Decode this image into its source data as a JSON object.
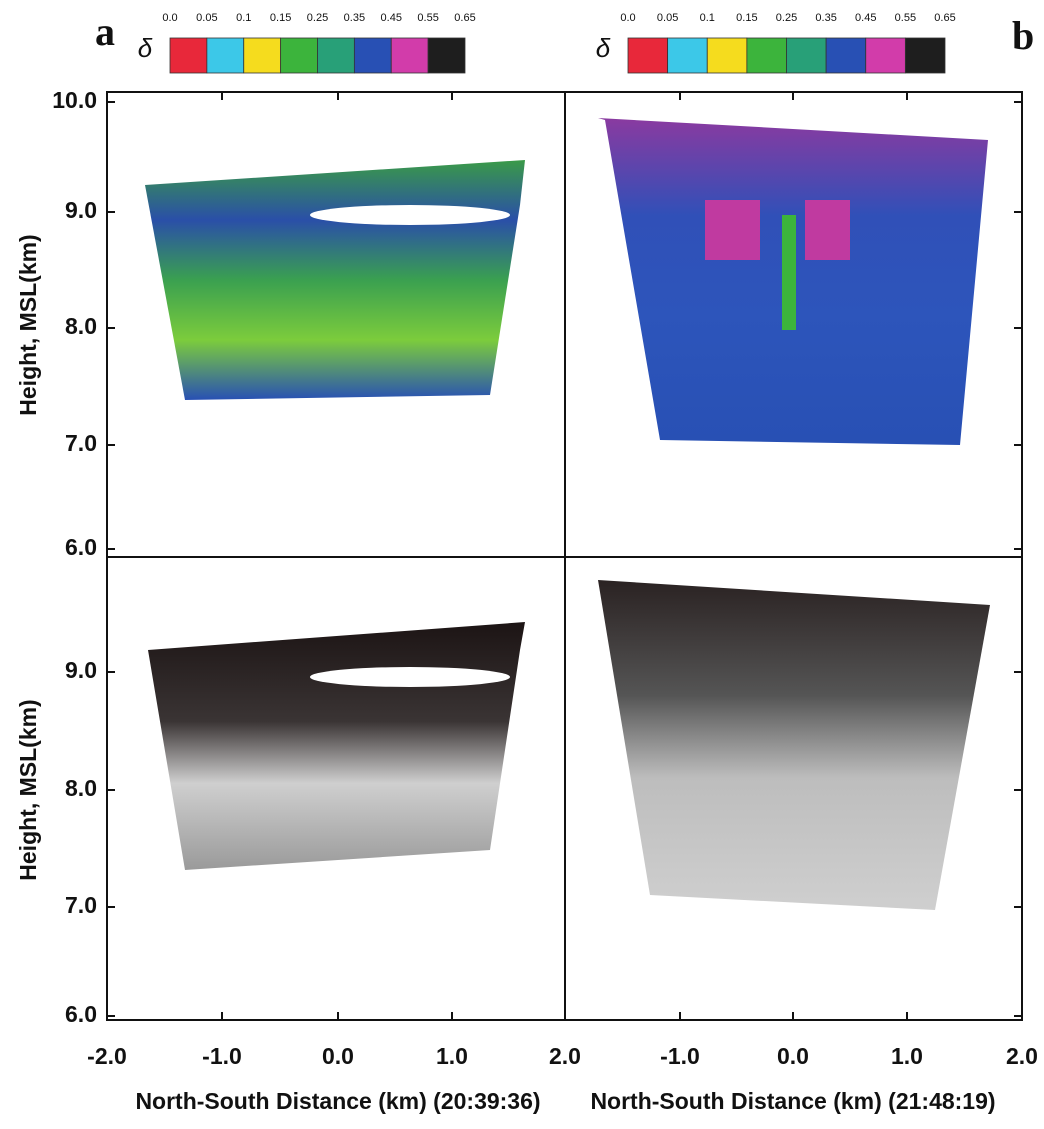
{
  "panel_labels": [
    "a",
    "b"
  ],
  "colorbar": {
    "symbol": "δ",
    "ticks": [
      "0.0",
      "0.05",
      "0.1",
      "0.15",
      "0.25",
      "0.35",
      "0.45",
      "0.55",
      "0.65"
    ],
    "colors": [
      "#e8283a",
      "#3cc8e8",
      "#f5dc1e",
      "#3cb43c",
      "#28a078",
      "#2850b4",
      "#d23caa",
      "#1e1e1e"
    ]
  },
  "y_axis": {
    "label": "Height, MSL(km)",
    "ticks": [
      "6.0",
      "7.0",
      "8.0",
      "9.0",
      "10.0"
    ]
  },
  "x_axis": {
    "ticks": [
      "-2.0",
      "-1.0",
      "0.0",
      "1.0",
      "2.0"
    ],
    "labels": [
      "North-South Distance (km) (20:39:36)",
      "North-South Distance (km) (21:48:19)"
    ]
  }
}
